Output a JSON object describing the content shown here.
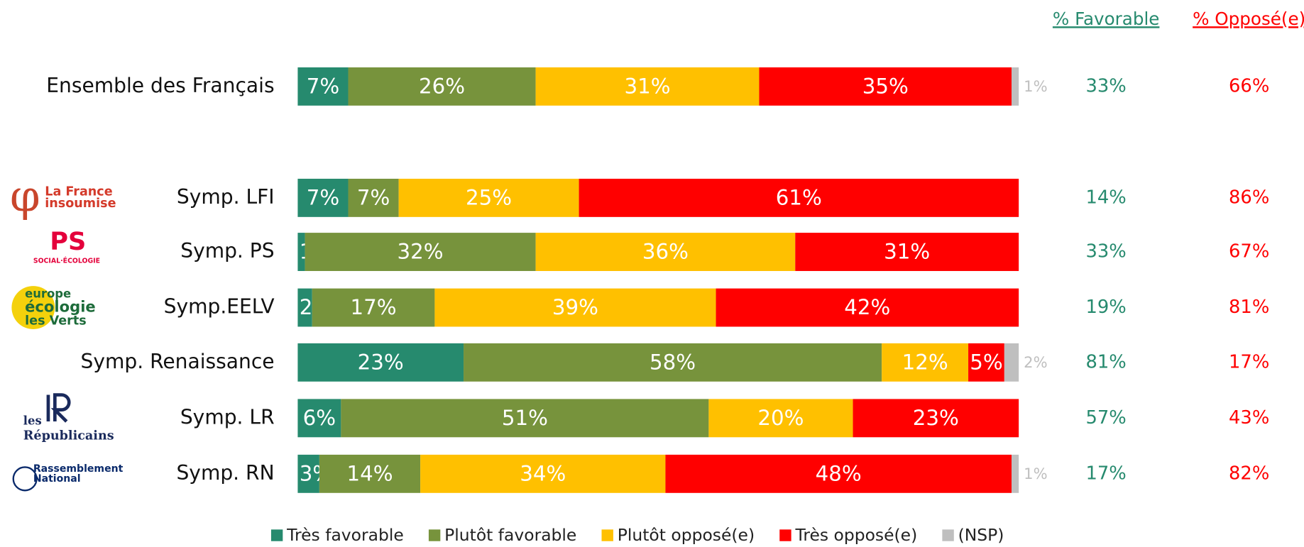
{
  "chart_data": {
    "type": "stacked-bar-horizontal",
    "categories": [
      "Ensemble des Français",
      "Symp. LFI",
      "Symp. PS",
      "Symp.EELV",
      "Symp. Renaissance",
      "Symp. LR",
      "Symp. RN"
    ],
    "xlim": [
      0,
      100
    ],
    "series": [
      {
        "name": "Très favorable",
        "color": "#268A6E",
        "values": [
          7,
          7,
          1,
          2,
          23,
          6,
          3
        ],
        "value_labels": [
          "7%",
          "7%",
          "1%",
          "2%",
          "23%",
          "6%",
          "3%"
        ]
      },
      {
        "name": "Plutôt favorable",
        "color": "#77933C",
        "values": [
          26,
          7,
          32,
          17,
          58,
          51,
          14
        ],
        "value_labels": [
          "26%",
          "7%",
          "32%",
          "17%",
          "58%",
          "51%",
          "14%"
        ]
      },
      {
        "name": "Plutôt opposé(e)",
        "color": "#FFC000",
        "values": [
          31,
          25,
          36,
          39,
          12,
          20,
          34
        ],
        "value_labels": [
          "31%",
          "25%",
          "36%",
          "39%",
          "12%",
          "20%",
          "34%"
        ]
      },
      {
        "name": "Très opposé(e)",
        "color": "#FF0000",
        "values": [
          35,
          61,
          31,
          42,
          5,
          23,
          48
        ],
        "value_labels": [
          "35%",
          "61%",
          "31%",
          "42%",
          "5%",
          "23%",
          "48%"
        ]
      },
      {
        "name": "(NSP)",
        "color": "#BFBFBF",
        "values": [
          1,
          null,
          null,
          null,
          2,
          null,
          1
        ],
        "value_labels": [
          "1%",
          null,
          null,
          null,
          "2%",
          null,
          "1%"
        ]
      }
    ],
    "favorable": {
      "title": "% Favorable",
      "color": "#268A6E",
      "values": [
        33,
        14,
        33,
        19,
        81,
        57,
        17
      ],
      "value_labels": [
        "33%",
        "14%",
        "33%",
        "19%",
        "81%",
        "57%",
        "17%"
      ]
    },
    "opposed": {
      "title": "% Opposé(e)",
      "color": "#FF0000",
      "values": [
        66,
        86,
        67,
        81,
        17,
        43,
        82
      ],
      "value_labels": [
        "66%",
        "86%",
        "67%",
        "81%",
        "17%",
        "43%",
        "82%"
      ]
    },
    "logos": [
      null,
      [
        "La France",
        "insoumise"
      ],
      [
        "PS",
        "SOCIAL·ÉCOLOGIE"
      ],
      [
        "europe",
        "écologie",
        "les Verts"
      ],
      null,
      [
        "les",
        "Républicains"
      ],
      [
        "Rassemblement",
        "National"
      ]
    ]
  }
}
